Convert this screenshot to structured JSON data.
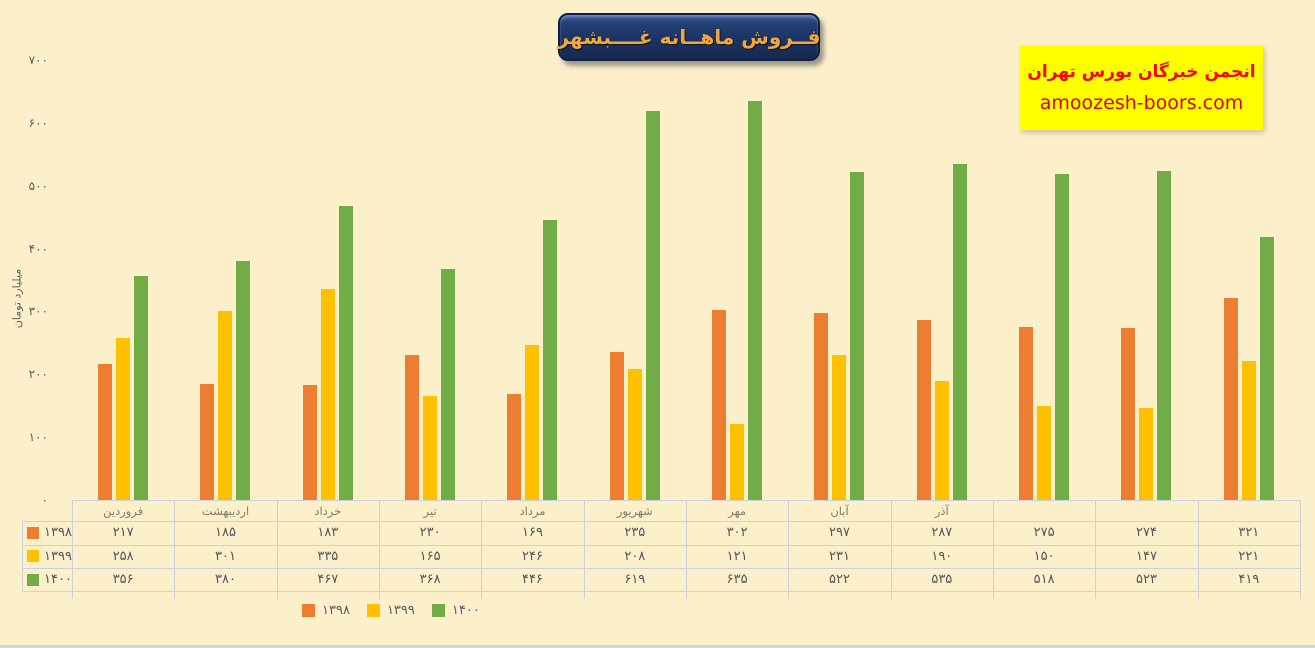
{
  "page": {
    "background": "#FCF0CB",
    "title": "فــروش ماهــانه غــــبشهر"
  },
  "promo": {
    "org_name": "انجمن خبرگان بورس تهران",
    "website": "amoozesh-boors.com",
    "bg_color": "#FFFF00",
    "text_color": "#FF0000"
  },
  "chart_data": {
    "type": "bar",
    "title": "فــروش ماهــانه غــــبشهر",
    "ylabel": "میلیارد تومان",
    "ylim": [
      0,
      700
    ],
    "ytick_step": 100,
    "ytick_labels": [
      "۰",
      "۱۰۰",
      "۲۰۰",
      "۳۰۰",
      "۴۰۰",
      "۵۰۰",
      "۶۰۰",
      "۷۰۰"
    ],
    "grid": false,
    "legend_position": "bottom-left",
    "data_table_shown": true,
    "categories": [
      "فروردین",
      "اردیبهشت",
      "خرداد",
      "تیر",
      "مرداد",
      "شهریور",
      "مهر",
      "آبان",
      "آذر",
      "",
      "",
      ""
    ],
    "series": [
      {
        "name": "۱۳۹۸",
        "color": "#ED7D31",
        "values": [
          217,
          185,
          183,
          230,
          169,
          235,
          302,
          297,
          287,
          275,
          274,
          321
        ],
        "display": [
          "۲۱۷",
          "۱۸۵",
          "۱۸۳",
          "۲۳۰",
          "۱۶۹",
          "۲۳۵",
          "۳۰۲",
          "۲۹۷",
          "۲۸۷",
          "۲۷۵",
          "۲۷۴",
          "۳۲۱"
        ]
      },
      {
        "name": "۱۳۹۹",
        "color": "#FFC000",
        "values": [
          258,
          301,
          335,
          165,
          246,
          208,
          121,
          231,
          190,
          150,
          147,
          221
        ],
        "display": [
          "۲۵۸",
          "۳۰۱",
          "۳۳۵",
          "۱۶۵",
          "۲۴۶",
          "۲۰۸",
          "۱۲۱",
          "۲۳۱",
          "۱۹۰",
          "۱۵۰",
          "۱۴۷",
          "۲۲۱"
        ]
      },
      {
        "name": "۱۴۰۰",
        "color": "#70AD47",
        "values": [
          356,
          380,
          467,
          368,
          446,
          619,
          635,
          522,
          535,
          518,
          523,
          419
        ],
        "display": [
          "۳۵۶",
          "۳۸۰",
          "۴۶۷",
          "۳۶۸",
          "۴۴۶",
          "۶۱۹",
          "۶۳۵",
          "۵۲۲",
          "۵۳۵",
          "۵۱۸",
          "۵۲۳",
          "۴۱۹"
        ]
      }
    ]
  }
}
